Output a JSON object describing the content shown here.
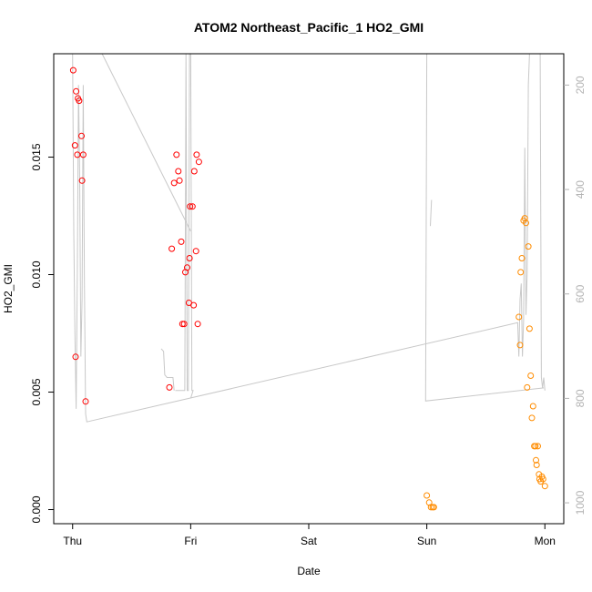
{
  "chart_data": {
    "type": "scatter",
    "title": "ATOM2 Northeast_Pacific_1 HO2_GMI",
    "xlabel": "Date",
    "ylabel": "HO2_GMI",
    "x_ticks": [
      "Thu",
      "Fri",
      "Sat",
      "Sun",
      "Mon"
    ],
    "x_range_days": [
      -0.16,
      4.16
    ],
    "y_ticks": [
      "0.000",
      "0.005",
      "0.010",
      "0.015"
    ],
    "ylim": [
      -0.0006,
      0.0194
    ],
    "right_axis": {
      "quantity": "pressure",
      "ticks": [
        "200",
        "400",
        "600",
        "800",
        "1000"
      ],
      "range": [
        1040,
        140
      ],
      "color": "#b3b3b3"
    },
    "grid": false,
    "series": [
      {
        "color": "#ff0000",
        "marker": "open-circle",
        "points": [
          [
            0.005,
            0.0187
          ],
          [
            0.03,
            0.0178
          ],
          [
            0.045,
            0.0175
          ],
          [
            0.055,
            0.0174
          ],
          [
            0.02,
            0.0155
          ],
          [
            0.04,
            0.0151
          ],
          [
            0.075,
            0.0159
          ],
          [
            0.09,
            0.0151
          ],
          [
            0.08,
            0.014
          ],
          [
            0.025,
            0.0065
          ],
          [
            0.11,
            0.0046
          ],
          [
            0.82,
            0.0052
          ],
          [
            0.84,
            0.0111
          ],
          [
            0.86,
            0.0139
          ],
          [
            0.88,
            0.0151
          ],
          [
            0.895,
            0.0144
          ],
          [
            0.905,
            0.014
          ],
          [
            0.92,
            0.0114
          ],
          [
            0.93,
            0.0079
          ],
          [
            0.945,
            0.0079
          ],
          [
            0.955,
            0.0101
          ],
          [
            0.97,
            0.0103
          ],
          [
            0.985,
            0.0088
          ],
          [
            0.99,
            0.0107
          ],
          [
            0.995,
            0.0129
          ],
          [
            1.015,
            0.0129
          ],
          [
            1.03,
            0.0144
          ],
          [
            1.025,
            0.0087
          ],
          [
            1.045,
            0.011
          ],
          [
            1.05,
            0.0151
          ],
          [
            1.06,
            0.0079
          ],
          [
            1.07,
            0.0148
          ]
        ]
      },
      {
        "color": "#ff8c00",
        "marker": "open-circle",
        "points": [
          [
            3.0,
            0.0006
          ],
          [
            3.02,
            0.0003
          ],
          [
            3.035,
            0.0001
          ],
          [
            3.05,
            0.0001
          ],
          [
            3.06,
            0.0001
          ],
          [
            3.78,
            0.0082
          ],
          [
            3.79,
            0.007
          ],
          [
            3.795,
            0.0101
          ],
          [
            3.805,
            0.0107
          ],
          [
            3.82,
            0.0123
          ],
          [
            3.83,
            0.0124
          ],
          [
            3.84,
            0.0122
          ],
          [
            3.85,
            0.0052
          ],
          [
            3.86,
            0.0112
          ],
          [
            3.87,
            0.0077
          ],
          [
            3.88,
            0.0057
          ],
          [
            3.89,
            0.0039
          ],
          [
            3.9,
            0.0044
          ],
          [
            3.91,
            0.0027
          ],
          [
            3.92,
            0.0027
          ],
          [
            3.925,
            0.0021
          ],
          [
            3.93,
            0.0019
          ],
          [
            3.94,
            0.0027
          ],
          [
            3.95,
            0.0015
          ],
          [
            3.955,
            0.0013
          ],
          [
            3.965,
            0.0012
          ],
          [
            3.975,
            0.0014
          ],
          [
            3.985,
            0.0013
          ],
          [
            4.0,
            0.001
          ]
        ]
      }
    ],
    "pressure_track": {
      "color": "#c8c8c8",
      "points": [
        [
          0.0,
          130
        ],
        [
          0.01,
          480
        ],
        [
          0.02,
          680
        ],
        [
          0.03,
          820
        ],
        [
          0.04,
          560
        ],
        [
          0.05,
          200
        ],
        [
          0.06,
          380
        ],
        [
          0.07,
          720
        ],
        [
          0.08,
          610
        ],
        [
          0.09,
          200
        ],
        [
          0.1,
          580
        ],
        [
          0.11,
          830
        ],
        [
          0.12,
          845
        ],
        [
          3.77,
          655
        ],
        [
          3.78,
          720
        ],
        [
          3.79,
          610
        ],
        [
          3.8,
          580
        ],
        [
          3.81,
          720
        ],
        [
          3.82,
          650
        ],
        [
          3.83,
          320
        ],
        [
          3.84,
          640
        ],
        [
          3.85,
          560
        ],
        [
          3.86,
          200
        ],
        [
          3.87,
          130
        ]
      ],
      "extra_segments": [
        [
          [
            0.25,
            130
          ],
          [
            1.0,
            480
          ]
        ],
        [
          [
            3.0,
            130
          ],
          [
            2.99,
            805
          ],
          [
            3.99,
            780
          ]
        ],
        [
          [
            3.03,
            470
          ],
          [
            3.04,
            420
          ]
        ],
        [
          [
            0.75,
            705
          ],
          [
            0.77,
            710
          ],
          [
            0.78,
            755
          ],
          [
            0.8,
            760
          ],
          [
            0.82,
            760
          ],
          [
            0.85,
            760
          ],
          [
            0.86,
            785
          ]
        ],
        [
          [
            0.87,
            785
          ],
          [
            0.9,
            785
          ],
          [
            0.94,
            785
          ],
          [
            0.95,
            785
          ],
          [
            0.96,
            140
          ],
          [
            0.97,
            785
          ],
          [
            0.98,
            785
          ],
          [
            0.99,
            140
          ],
          [
            1.0,
            140
          ],
          [
            1.01,
            785
          ],
          [
            1.02,
            785
          ],
          [
            1.0,
            800
          ]
        ],
        [
          [
            3.96,
            130
          ],
          [
            3.97,
            760
          ],
          [
            3.98,
            780
          ],
          [
            3.99,
            760
          ],
          [
            4.0,
            785
          ]
        ]
      ]
    }
  }
}
